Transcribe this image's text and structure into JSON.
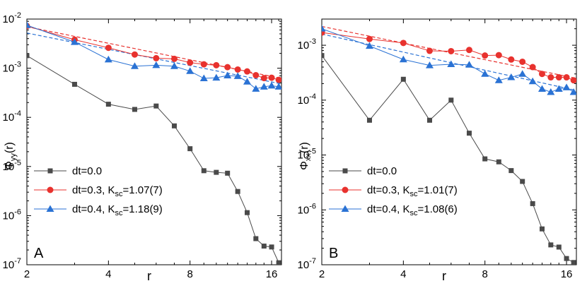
{
  "chart_data": [
    {
      "type": "line",
      "panel_label": "A",
      "xlabel": "r",
      "ylabel": "Φ",
      "ylabel_sub": "yy",
      "ylabel_tail": "(r)",
      "xscale": "log2",
      "yscale": "log",
      "xlim": [
        2,
        17.4
      ],
      "ylim": [
        1e-07,
        0.01
      ],
      "xticks": [
        {
          "v": 2,
          "label": "2"
        },
        {
          "v": 4,
          "label": "4"
        },
        {
          "v": 8,
          "label": "8"
        },
        {
          "v": 16,
          "label": "16"
        }
      ],
      "yticks": [
        {
          "v": 0.01,
          "base": "10",
          "exp": "-2"
        },
        {
          "v": 0.001,
          "base": "10",
          "exp": "-3"
        },
        {
          "v": 0.0001,
          "base": "10",
          "exp": "-4"
        },
        {
          "v": 1e-05,
          "base": "10",
          "exp": "-5"
        },
        {
          "v": 1e-06,
          "base": "10",
          "exp": "-6"
        },
        {
          "v": 1e-07,
          "base": "10",
          "exp": "-7"
        }
      ],
      "legend_position": "bottom-left",
      "series": [
        {
          "name": "dt=0.0",
          "name_parts": {
            "main": "dt=0.0",
            "k": "",
            "ksub": "",
            "kval": ""
          },
          "color": "#4a4a4a",
          "marker": "square",
          "x": [
            2,
            3,
            4,
            5,
            6,
            7,
            8,
            9,
            10,
            11,
            12,
            13,
            14,
            15,
            16,
            17
          ],
          "y": [
            0.0018,
            0.00047,
            0.000185,
            0.000145,
            0.00017,
            6.7e-05,
            2.3e-05,
            8.2e-06,
            7.6e-06,
            7.3e-06,
            3.1e-06,
            1.15e-06,
            3.4e-07,
            2.4e-07,
            2.3e-07,
            1.1e-07
          ]
        },
        {
          "name": "dt=0.3, Ksc=1.07(7)",
          "name_parts": {
            "main": "dt=0.3, ",
            "k": "K",
            "ksub": "sc",
            "kval": "=1.07(7)"
          },
          "color": "#e8322e",
          "marker": "circle",
          "x": [
            2,
            3,
            4,
            5,
            6,
            7,
            8,
            9,
            10,
            11,
            12,
            13,
            14,
            15,
            16,
            17
          ],
          "y": [
            0.0072,
            0.0038,
            0.0026,
            0.0019,
            0.0016,
            0.00155,
            0.0013,
            0.0012,
            0.00115,
            0.00105,
            0.00094,
            0.00086,
            0.00072,
            0.00063,
            0.00064,
            0.00058
          ]
        },
        {
          "name": "dt=0.4, Ksc=1.18(9)",
          "name_parts": {
            "main": "dt=0.4, ",
            "k": "K",
            "ksub": "sc",
            "kval": "=1.18(9)"
          },
          "color": "#2a72d4",
          "marker": "triangle",
          "x": [
            2,
            3,
            4,
            5,
            6,
            7,
            8,
            9,
            10,
            11,
            12,
            13,
            14,
            15,
            16,
            17
          ],
          "y": [
            0.0075,
            0.0034,
            0.0015,
            0.0011,
            0.00115,
            0.0011,
            0.00087,
            0.00062,
            0.00064,
            0.00071,
            0.00069,
            0.00053,
            0.00038,
            0.00042,
            0.00044,
            0.00042
          ]
        }
      ],
      "fits": [
        {
          "color": "#e8322e",
          "x": [
            2,
            17.4
          ],
          "y": [
            0.007,
            0.00062
          ]
        },
        {
          "color": "#2a72d4",
          "x": [
            2,
            17.4
          ],
          "y": [
            0.0052,
            0.00048
          ]
        }
      ]
    },
    {
      "type": "line",
      "panel_label": "B",
      "xlabel": "r",
      "ylabel": "Φ",
      "ylabel_sub": "xx",
      "ylabel_tail": "(r)",
      "xscale": "log2",
      "yscale": "log",
      "xlim": [
        2,
        17.4
      ],
      "ylim": [
        1e-07,
        0.003
      ],
      "xticks": [
        {
          "v": 2,
          "label": "2"
        },
        {
          "v": 4,
          "label": "4"
        },
        {
          "v": 8,
          "label": "8"
        },
        {
          "v": 16,
          "label": "16"
        }
      ],
      "yticks": [
        {
          "v": 0.001,
          "base": "10",
          "exp": "-3"
        },
        {
          "v": 0.0001,
          "base": "10",
          "exp": "-4"
        },
        {
          "v": 1e-05,
          "base": "10",
          "exp": "-5"
        },
        {
          "v": 1e-06,
          "base": "10",
          "exp": "-6"
        },
        {
          "v": 1e-07,
          "base": "10",
          "exp": "-7"
        }
      ],
      "legend_position": "bottom-left",
      "series": [
        {
          "name": "dt=0.0",
          "name_parts": {
            "main": "dt=0.0",
            "k": "",
            "ksub": "",
            "kval": ""
          },
          "color": "#4a4a4a",
          "marker": "square",
          "x": [
            2,
            3,
            4,
            5,
            6,
            7,
            8,
            9,
            10,
            11,
            12,
            13,
            14,
            15,
            16,
            17
          ],
          "y": [
            0.00065,
            4.3e-05,
            0.00024,
            4.3e-05,
            0.0001,
            2.5e-05,
            8.5e-06,
            7.5e-06,
            5.2e-06,
            3.3e-06,
            1.3e-06,
            4.5e-07,
            2.3e-07,
            2.1e-07,
            1.3e-07,
            1.1e-07
          ]
        },
        {
          "name": "dt=0.3, Ksc=1.01(7)",
          "name_parts": {
            "main": "dt=0.3, ",
            "k": "K",
            "ksub": "sc",
            "kval": "=1.01(7)"
          },
          "color": "#e8322e",
          "marker": "circle",
          "x": [
            2,
            3,
            4,
            5,
            6,
            7,
            8,
            9,
            10,
            11,
            12,
            13,
            14,
            15,
            16,
            17
          ],
          "y": [
            0.0017,
            0.0013,
            0.0011,
            0.00079,
            0.00078,
            0.00082,
            0.00065,
            0.00066,
            0.00055,
            0.0005,
            0.0004,
            0.0003,
            0.00026,
            0.00026,
            0.00026,
            0.00023
          ]
        },
        {
          "name": "dt=0.4, Ksc=1.08(6)",
          "name_parts": {
            "main": "dt=0.4, ",
            "k": "K",
            "ksub": "sc",
            "kval": "=1.08(6)"
          },
          "color": "#2a72d4",
          "marker": "triangle",
          "x": [
            2,
            3,
            4,
            5,
            6,
            7,
            8,
            9,
            10,
            11,
            12,
            13,
            14,
            15,
            16,
            17
          ],
          "y": [
            0.002,
            0.00097,
            0.00055,
            0.00043,
            0.00045,
            0.00044,
            0.0003,
            0.00023,
            0.00026,
            0.0003,
            0.00022,
            0.00016,
            0.00014,
            0.00016,
            0.00017,
            0.00014
          ]
        }
      ],
      "fits": [
        {
          "color": "#e8322e",
          "x": [
            2,
            17.4
          ],
          "y": [
            0.0022,
            0.00025
          ]
        },
        {
          "color": "#2a72d4",
          "x": [
            2,
            17.4
          ],
          "y": [
            0.0016,
            0.00015
          ]
        }
      ]
    }
  ]
}
